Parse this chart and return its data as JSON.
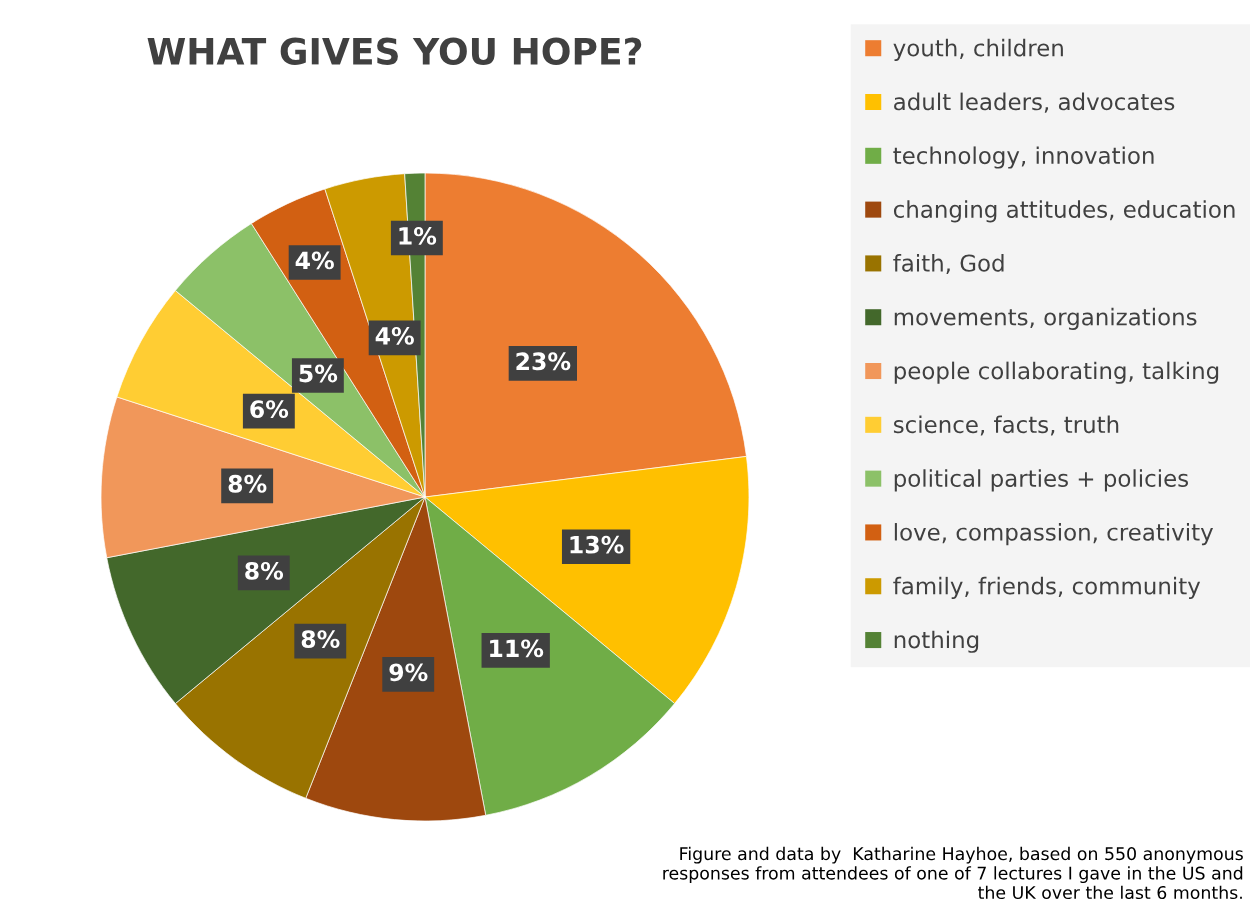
{
  "chart_data": {
    "type": "pie",
    "title": "WHAT GIVES YOU HOPE?",
    "categories": [
      "youth, children",
      "adult leaders, advocates",
      "technology, innovation",
      "changing attitudes, education",
      "faith, God",
      "movements, organizations",
      "people collaborating, talking",
      "science, facts, truth",
      "political parties + policies",
      "love, compassion, creativity",
      "family, friends, community",
      "nothing"
    ],
    "values": [
      23,
      13,
      11,
      9,
      8,
      8,
      8,
      6,
      5,
      4,
      4,
      1
    ],
    "value_labels": [
      "23%",
      "13%",
      "11%",
      "9%",
      "8%",
      "8%",
      "8%",
      "6%",
      "5%",
      "4%",
      "4%",
      "1%"
    ],
    "colors": [
      "#ed7d31",
      "#ffc000",
      "#70ad47",
      "#9e480e",
      "#997300",
      "#43682b",
      "#f1975a",
      "#ffcd33",
      "#8cc168",
      "#d26012",
      "#cc9a00",
      "#548235"
    ],
    "legend": "right",
    "annotations": [
      "Figure and data by  Katharine Hayhoe, based on 550 anonymous\nresponses from attendees of one of 7 lectures I gave in the US and\nthe UK over the last 6 months."
    ]
  }
}
